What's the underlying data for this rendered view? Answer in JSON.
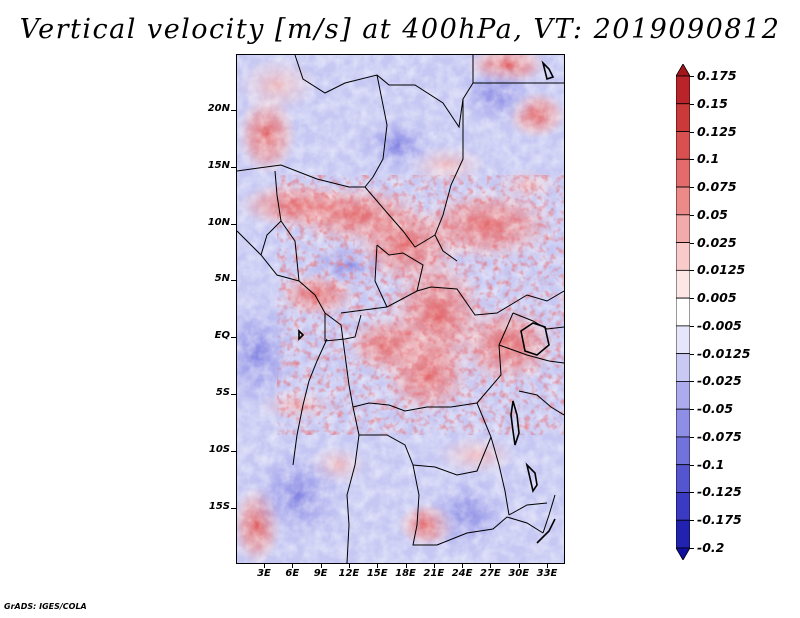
{
  "title": "Vertical velocity [m/s] at 400hPa, VT: 2019090812",
  "credit": "GrADS: IGES/COLA",
  "map": {
    "lat_labels": [
      "20N",
      "15N",
      "10N",
      "5N",
      "EQ",
      "5S",
      "10S",
      "15S"
    ],
    "lon_labels": [
      "3E",
      "6E",
      "9E",
      "12E",
      "15E",
      "18E",
      "21E",
      "24E",
      "27E",
      "30E",
      "33E"
    ]
  },
  "colorbar": {
    "labels": [
      "0.175",
      "0.15",
      "0.125",
      "0.1",
      "0.075",
      "0.05",
      "0.025",
      "0.0125",
      "0.005",
      "-0.005",
      "-0.0125",
      "-0.025",
      "-0.05",
      "-0.075",
      "-0.1",
      "-0.125",
      "-0.175",
      "-0.2"
    ],
    "colors": [
      "#a4151c",
      "#b8242a",
      "#cb3a3a",
      "#d95050",
      "#e36b6b",
      "#ec8a8a",
      "#f3aaaa",
      "#f9caca",
      "#fce6e6",
      "#ffffff",
      "#e6e6fb",
      "#c9c9f4",
      "#ababee",
      "#8e8ee6",
      "#7272dc",
      "#5555d0",
      "#3a3ac2",
      "#2222b0",
      "#1010a0"
    ]
  }
}
